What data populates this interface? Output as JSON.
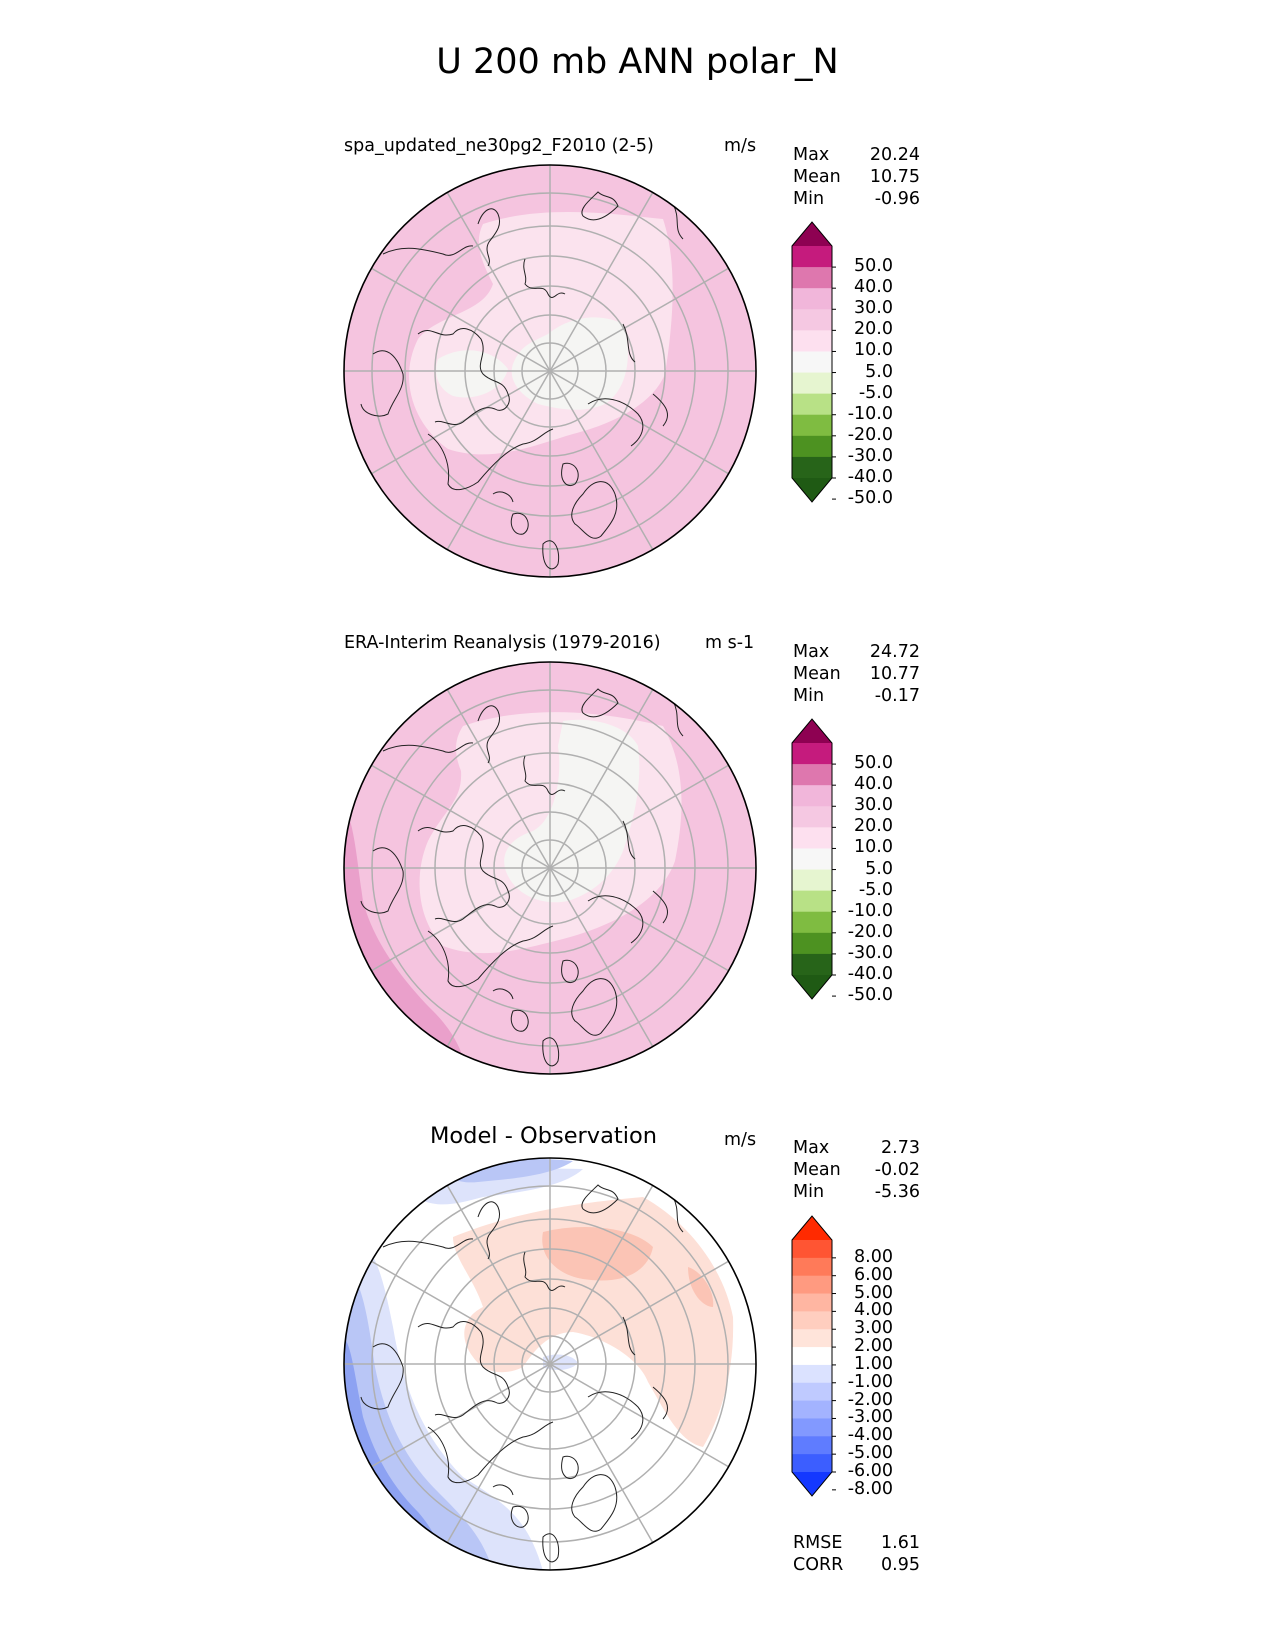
{
  "figure_title": "U 200 mb ANN polar_N",
  "chart_data": [
    {
      "type": "polar_contour_map",
      "title": "spa_updated_ne30pg2_F2010 (2-5)",
      "units": "m/s",
      "stats": {
        "max_label": "Max",
        "max": "20.24",
        "mean_label": "Mean",
        "mean": "10.75",
        "min_label": "Min",
        "min": "-0.96"
      },
      "colorbar": {
        "levels": [
          "50.0",
          "40.0",
          "30.0",
          "20.0",
          "10.0",
          "5.0",
          "-5.0",
          "-10.0",
          "-20.0",
          "-30.0",
          "-40.0",
          "-50.0"
        ],
        "colors": [
          "#8e0152",
          "#c51b7d",
          "#de77ae",
          "#f1b6da",
          "#f5c8e2",
          "#fde0ef",
          "#f7f7f7",
          "#e6f5d0",
          "#b8e186",
          "#7fbc41",
          "#4d9221",
          "#276419",
          "#1f5a14"
        ]
      },
      "field_zones": [
        {
          "level": "10.0",
          "color": "#f5c4df"
        },
        {
          "level": "5.0",
          "color": "#fbe3ee"
        },
        {
          "level": "-5.0",
          "color": "#f5f5f3"
        }
      ]
    },
    {
      "type": "polar_contour_map",
      "title": "ERA-Interim Reanalysis (1979-2016)",
      "units": "m s-1",
      "stats": {
        "max_label": "Max",
        "max": "24.72",
        "mean_label": "Mean",
        "mean": "10.77",
        "min_label": "Min",
        "min": "-0.17"
      },
      "colorbar": {
        "levels": [
          "50.0",
          "40.0",
          "30.0",
          "20.0",
          "10.0",
          "5.0",
          "-5.0",
          "-10.0",
          "-20.0",
          "-30.0",
          "-40.0",
          "-50.0"
        ],
        "colors": [
          "#8e0152",
          "#c51b7d",
          "#de77ae",
          "#f1b6da",
          "#f5c8e2",
          "#fde0ef",
          "#f7f7f7",
          "#e6f5d0",
          "#b8e186",
          "#7fbc41",
          "#4d9221",
          "#276419",
          "#1f5a14"
        ]
      },
      "field_zones": [
        {
          "level": "20.0",
          "color": "#eaa0cb"
        },
        {
          "level": "10.0",
          "color": "#f5c4df"
        },
        {
          "level": "5.0",
          "color": "#fbe3ee"
        },
        {
          "level": "-5.0",
          "color": "#f5f5f3"
        }
      ]
    },
    {
      "type": "polar_contour_map",
      "title": "Model - Observation",
      "units": "m/s",
      "stats": {
        "max_label": "Max",
        "max": "2.73",
        "mean_label": "Mean",
        "mean": "-0.02",
        "min_label": "Min",
        "min": "-5.36"
      },
      "colorbar": {
        "levels": [
          "8.00",
          "6.00",
          "5.00",
          "4.00",
          "3.00",
          "2.00",
          "1.00",
          "-1.00",
          "-2.00",
          "-3.00",
          "-4.00",
          "-5.00",
          "-6.00",
          "-8.00"
        ],
        "colors": [
          "#ff2a00",
          "#ff5533",
          "#ff7a59",
          "#ff9a80",
          "#ffb6a2",
          "#ffcebf",
          "#ffe4da",
          "#ffffff",
          "#dbe2ff",
          "#bfcaff",
          "#a3b3ff",
          "#8299ff",
          "#5f7cff",
          "#3c5eff",
          "#1438ff"
        ]
      },
      "field_zones": [
        {
          "level": "-3.00",
          "color": "#8da2f2"
        },
        {
          "level": "-2.00",
          "color": "#b9c6f6"
        },
        {
          "level": "-1.00",
          "color": "#dde3fb"
        },
        {
          "level": "1.00",
          "color": "#fde0d7"
        },
        {
          "level": "2.00",
          "color": "#fbc4b5"
        }
      ],
      "metrics": {
        "rmse_label": "RMSE",
        "rmse": "1.61",
        "corr_label": "CORR",
        "corr": "0.95"
      }
    }
  ]
}
